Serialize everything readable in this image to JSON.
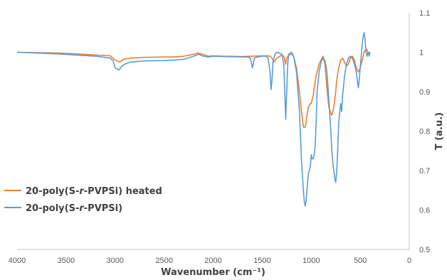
{
  "chart_data": {
    "type": "line",
    "xlabel": "Wavenumber (cm⁻¹)",
    "ylabel": "T (a.u.)",
    "xlim": [
      4000,
      0
    ],
    "ylim": [
      0.5,
      1.1
    ],
    "x_ticks": [
      "4000",
      "3500",
      "3000",
      "2500",
      "2000",
      "1500",
      "1000",
      "500",
      "0"
    ],
    "y_ticks": [
      "0.5",
      "0.6",
      "0.7",
      "0.8",
      "0.9",
      "1",
      "1.1"
    ],
    "y_axis_side": "right",
    "grid": false,
    "legend_position": "left",
    "series": [
      {
        "name_prefix": "20-poly(S-",
        "name_italic": "r",
        "name_suffix": "-PVPSi) heated",
        "color": "#ED7D31",
        "x": [
          4000,
          3800,
          3600,
          3400,
          3200,
          3050,
          3000,
          2950,
          2920,
          2850,
          2700,
          2500,
          2400,
          2300,
          2200,
          2150,
          2100,
          2050,
          2000,
          1900,
          1700,
          1600,
          1500,
          1450,
          1420,
          1400,
          1380,
          1350,
          1300,
          1280,
          1270,
          1260,
          1250,
          1230,
          1200,
          1180,
          1150,
          1120,
          1100,
          1080,
          1060,
          1050,
          1030,
          1010,
          1000,
          990,
          980,
          970,
          950,
          920,
          900,
          880,
          860,
          840,
          820,
          800,
          790,
          780,
          770,
          760,
          750,
          740,
          720,
          700,
          680,
          660,
          640,
          620,
          600,
          580,
          560,
          540,
          520,
          500,
          480,
          460,
          440,
          420,
          400
        ],
        "y": [
          1.0,
          0.999,
          0.998,
          0.996,
          0.993,
          0.991,
          0.98,
          0.975,
          0.982,
          0.985,
          0.987,
          0.988,
          0.988,
          0.99,
          0.995,
          0.998,
          0.994,
          0.99,
          0.991,
          0.99,
          0.989,
          0.99,
          0.991,
          0.991,
          0.99,
          0.985,
          0.975,
          0.985,
          0.993,
          0.99,
          0.98,
          0.97,
          0.985,
          0.993,
          0.995,
          0.99,
          0.96,
          0.9,
          0.85,
          0.81,
          0.81,
          0.83,
          0.86,
          0.87,
          0.87,
          0.88,
          0.89,
          0.91,
          0.94,
          0.97,
          0.98,
          0.99,
          0.97,
          0.91,
          0.86,
          0.845,
          0.84,
          0.85,
          0.86,
          0.88,
          0.9,
          0.93,
          0.96,
          0.98,
          0.985,
          0.975,
          0.965,
          0.97,
          0.985,
          0.99,
          0.98,
          0.96,
          0.95,
          0.96,
          0.98,
          1.0,
          1.01,
          1.0,
          1.0
        ]
      },
      {
        "name_prefix": "20-poly(S-",
        "name_italic": "r",
        "name_suffix": "-PVPSi)",
        "color": "#5B9BD5",
        "x": [
          4000,
          3800,
          3600,
          3400,
          3200,
          3050,
          3020,
          3000,
          2960,
          2930,
          2900,
          2850,
          2700,
          2500,
          2400,
          2300,
          2200,
          2150,
          2100,
          2050,
          2000,
          1900,
          1700,
          1650,
          1620,
          1600,
          1580,
          1550,
          1500,
          1460,
          1440,
          1420,
          1410,
          1400,
          1390,
          1370,
          1350,
          1300,
          1280,
          1270,
          1260,
          1250,
          1240,
          1230,
          1200,
          1180,
          1150,
          1120,
          1100,
          1080,
          1070,
          1060,
          1050,
          1040,
          1030,
          1020,
          1010,
          1000,
          990,
          980,
          970,
          960,
          950,
          940,
          920,
          900,
          880,
          860,
          840,
          820,
          800,
          790,
          780,
          770,
          760,
          750,
          740,
          730,
          720,
          700,
          690,
          680,
          660,
          640,
          620,
          600,
          580,
          560,
          540,
          530,
          520,
          510,
          500,
          490,
          480,
          470,
          460,
          450,
          440,
          430,
          420,
          410,
          400
        ],
        "y": [
          1.0,
          0.998,
          0.996,
          0.993,
          0.99,
          0.985,
          0.978,
          0.96,
          0.955,
          0.965,
          0.97,
          0.975,
          0.978,
          0.979,
          0.98,
          0.982,
          0.99,
          0.995,
          0.99,
          0.988,
          0.99,
          0.989,
          0.988,
          0.988,
          0.985,
          0.96,
          0.985,
          0.988,
          0.99,
          0.99,
          0.985,
          0.95,
          0.905,
          0.93,
          0.975,
          0.995,
          1.0,
          0.995,
          0.97,
          0.9,
          0.83,
          0.9,
          0.97,
          0.995,
          1.0,
          0.99,
          0.95,
          0.85,
          0.73,
          0.65,
          0.62,
          0.61,
          0.63,
          0.66,
          0.69,
          0.7,
          0.71,
          0.74,
          0.73,
          0.73,
          0.74,
          0.76,
          0.82,
          0.9,
          0.95,
          0.975,
          0.985,
          0.98,
          0.95,
          0.88,
          0.8,
          0.75,
          0.72,
          0.7,
          0.68,
          0.67,
          0.7,
          0.75,
          0.82,
          0.87,
          0.85,
          0.89,
          0.94,
          0.97,
          0.985,
          0.99,
          0.985,
          0.97,
          0.95,
          0.93,
          0.91,
          0.93,
          0.96,
          0.99,
          1.02,
          1.04,
          1.05,
          1.03,
          1.0,
          0.99,
          1.0,
          0.99,
          1.0
        ]
      }
    ]
  }
}
